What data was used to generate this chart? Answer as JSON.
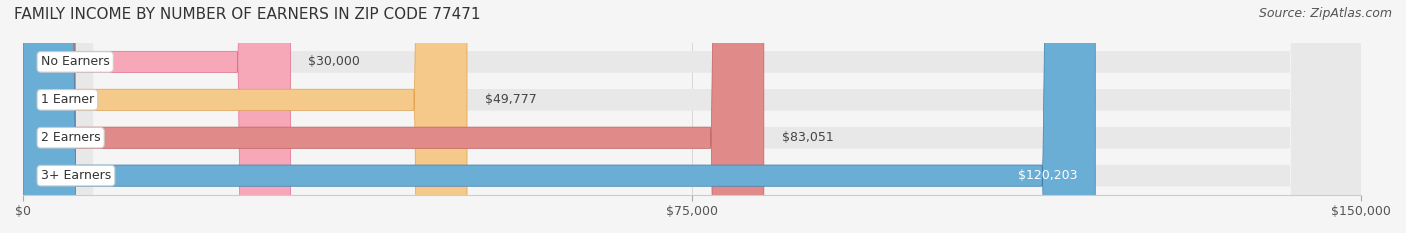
{
  "title": "FAMILY INCOME BY NUMBER OF EARNERS IN ZIP CODE 77471",
  "source": "Source: ZipAtlas.com",
  "categories": [
    "No Earners",
    "1 Earner",
    "2 Earners",
    "3+ Earners"
  ],
  "values": [
    30000,
    49777,
    83051,
    120203
  ],
  "labels": [
    "$30,000",
    "$49,777",
    "$83,051",
    "$120,203"
  ],
  "bar_colors": [
    "#f7a8b8",
    "#f5c98a",
    "#e08a8a",
    "#6aaed6"
  ],
  "bar_edge_colors": [
    "#e07090",
    "#e0a050",
    "#c06060",
    "#4080b0"
  ],
  "label_colors": [
    "#555555",
    "#555555",
    "#555555",
    "#ffffff"
  ],
  "x_ticks": [
    0,
    75000,
    150000
  ],
  "x_tick_labels": [
    "$0",
    "$75,000",
    "$150,000"
  ],
  "xlim": [
    0,
    150000
  ],
  "background_color": "#f5f5f5",
  "bar_background_color": "#e8e8e8",
  "title_fontsize": 11,
  "source_fontsize": 9,
  "label_fontsize": 9,
  "category_fontsize": 9,
  "tick_fontsize": 9
}
